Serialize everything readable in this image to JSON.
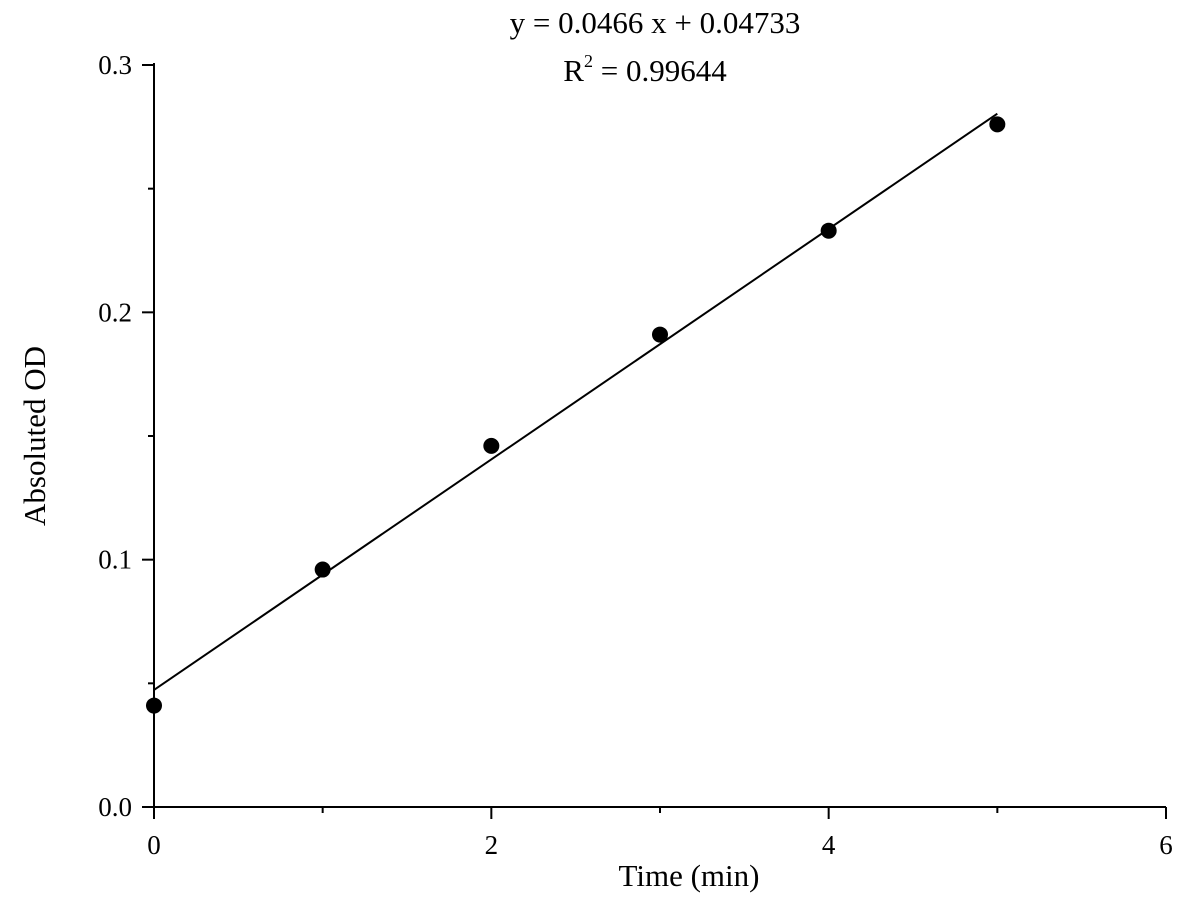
{
  "chart_data": {
    "type": "scatter",
    "xlabel": "Time (min)",
    "ylabel": "Absoluted OD",
    "xlim": [
      0,
      6
    ],
    "ylim": [
      0,
      0.3
    ],
    "xticks": [
      0,
      2,
      4,
      6
    ],
    "xtick_labels": [
      "0",
      "2",
      "4",
      "6"
    ],
    "yticks": [
      0.0,
      0.1,
      0.2,
      0.3
    ],
    "ytick_labels": [
      "0.0",
      "0.1",
      "0.2",
      "0.3"
    ],
    "x_minor_ticks": [
      1,
      3,
      5
    ],
    "y_minor_ticks": [
      0.05,
      0.15,
      0.25
    ],
    "grid": false,
    "points": {
      "x": [
        0,
        1,
        2,
        3,
        4,
        5
      ],
      "y": [
        0.041,
        0.096,
        0.146,
        0.191,
        0.233,
        0.276
      ]
    },
    "fit_line": {
      "slope": 0.0466,
      "intercept": 0.04733,
      "x_range": [
        0,
        5
      ]
    },
    "annotation": {
      "equation": "y = 0.0466 x + 0.04733",
      "r2_prefix": "R",
      "r2_superscript": "2",
      "r2_value": " = 0.99644"
    },
    "colors": {
      "points": "#000000",
      "line": "#000000",
      "axes": "#000000"
    }
  }
}
